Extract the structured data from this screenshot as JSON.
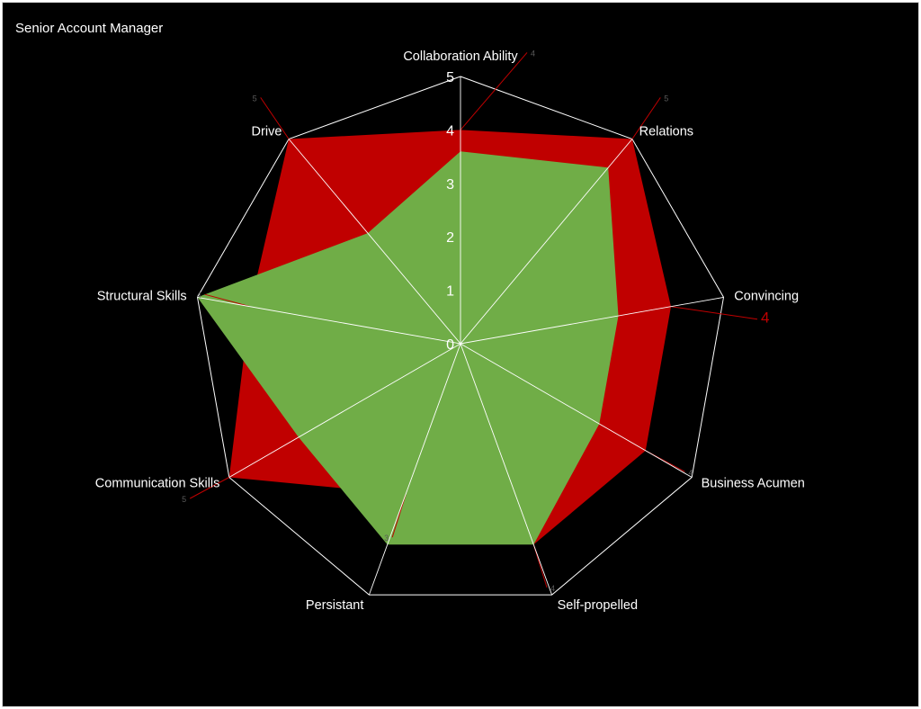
{
  "chart_data": {
    "type": "radar",
    "title": "Senior Account Manager",
    "categories": [
      "Collaboration Ability",
      "Relations",
      "Convincing",
      "Business Acumen",
      "Self-propelled",
      "Persistant",
      "Communication Skills",
      "Structural Skills",
      "Drive"
    ],
    "series": [
      {
        "values": [
          4,
          5,
          4,
          4,
          4,
          3,
          5,
          4,
          5
        ],
        "color": "#c00000"
      },
      {
        "values": [
          3.6,
          4.3,
          3.0,
          3.0,
          4.0,
          4.0,
          3.5,
          5.0,
          2.7
        ],
        "color": "#70ad47"
      }
    ],
    "value_labels": [
      "4",
      "5",
      "4",
      "4",
      "4",
      "3",
      "5",
      "4",
      "5"
    ],
    "rlim": [
      0,
      5
    ],
    "ticks": [
      "0",
      "1",
      "2",
      "3",
      "4",
      "5"
    ],
    "grid": true,
    "grid_color": "#ffffff",
    "background": "#000000"
  }
}
